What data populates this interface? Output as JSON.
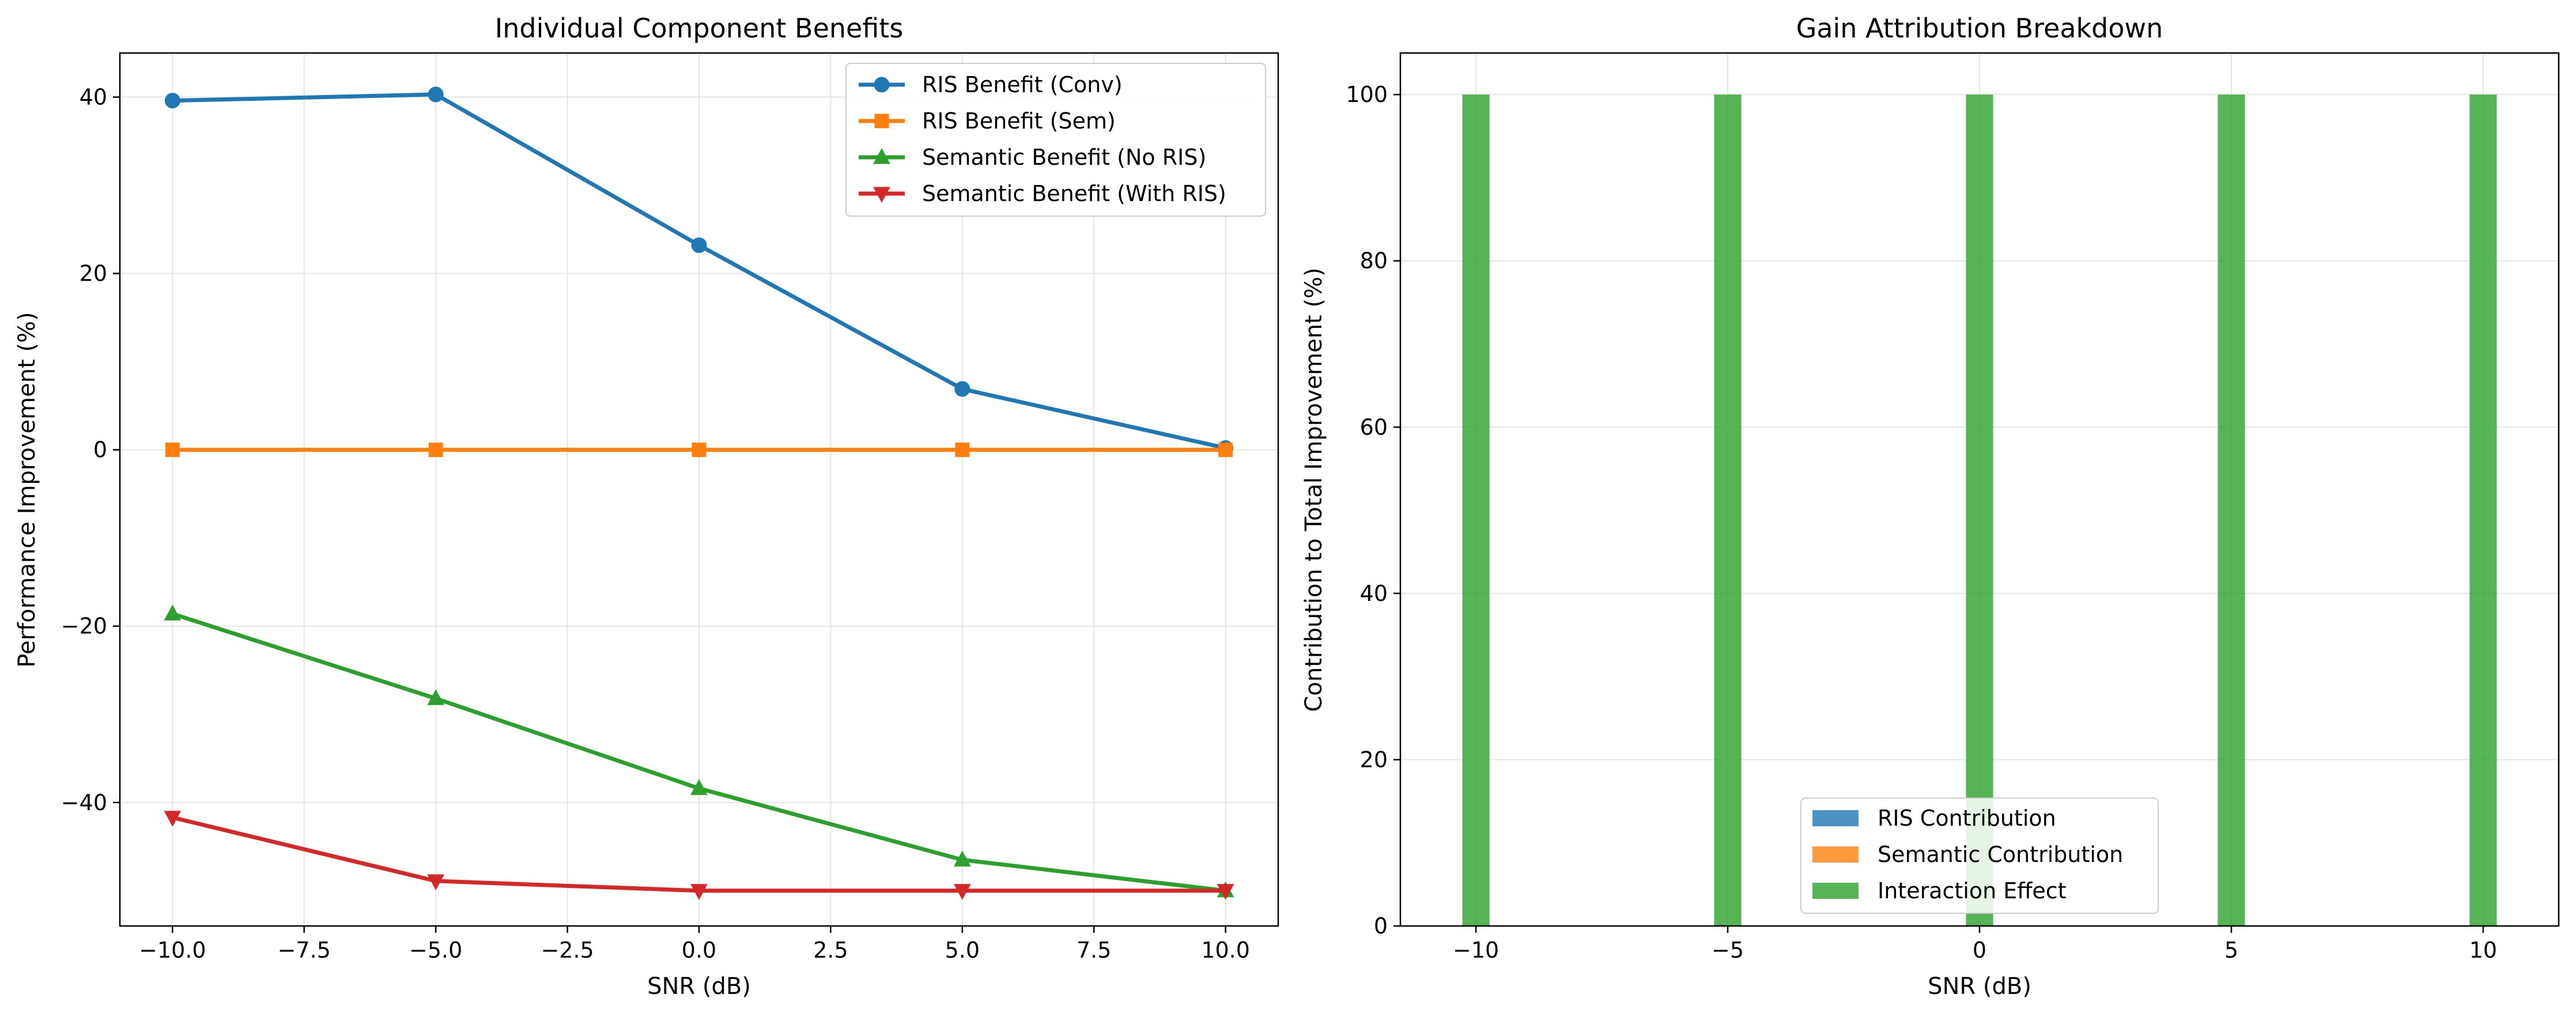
{
  "chart_data": [
    {
      "type": "line",
      "title": "Individual Component Benefits",
      "xlabel": "SNR (dB)",
      "ylabel": "Performance Improvement (%)",
      "x": [
        -10,
        -5,
        0,
        5,
        10
      ],
      "xlim": [
        -11,
        11
      ],
      "ylim": [
        -54,
        45
      ],
      "xticks": [
        -10.0,
        -7.5,
        -5.0,
        -2.5,
        0.0,
        2.5,
        5.0,
        7.5,
        10.0
      ],
      "xtick_labels": [
        "−10.0",
        "−7.5",
        "−5.0",
        "−2.5",
        "0.0",
        "2.5",
        "5.0",
        "7.5",
        "10.0"
      ],
      "yticks": [
        -40,
        -20,
        0,
        20,
        40
      ],
      "ytick_labels": [
        "−40",
        "−20",
        "0",
        "20",
        "40"
      ],
      "grid": true,
      "legend_position": "top-right",
      "series": [
        {
          "name": "RIS Benefit (Conv)",
          "color": "#1f77b4",
          "marker": "circle",
          "values": [
            39.6,
            40.3,
            23.2,
            6.9,
            0.2
          ]
        },
        {
          "name": "RIS Benefit (Sem)",
          "color": "#ff7f0e",
          "marker": "square",
          "values": [
            0,
            0,
            0,
            0,
            0
          ]
        },
        {
          "name": "Semantic Benefit (No RIS)",
          "color": "#2ca02c",
          "marker": "triangle-up",
          "values": [
            -18.6,
            -28.2,
            -38.4,
            -46.5,
            -50.0
          ]
        },
        {
          "name": "Semantic Benefit (With RIS)",
          "color": "#d62728",
          "marker": "triangle-down",
          "values": [
            -41.7,
            -48.9,
            -50.0,
            -50.0,
            -50.0
          ]
        }
      ]
    },
    {
      "type": "bar",
      "stacked": true,
      "title": "Gain Attribution Breakdown",
      "xlabel": "SNR (dB)",
      "ylabel": "Contribution to Total Improvement (%)",
      "x": [
        -10,
        -5,
        0,
        5,
        10
      ],
      "xlim": [
        -11.5,
        11.5
      ],
      "ylim": [
        0,
        105
      ],
      "xticks": [
        -10,
        -5,
        0,
        5,
        10
      ],
      "xtick_labels": [
        "−10",
        "−5",
        "0",
        "5",
        "10"
      ],
      "yticks": [
        0,
        20,
        40,
        60,
        80,
        100
      ],
      "ytick_labels": [
        "0",
        "20",
        "40",
        "60",
        "80",
        "100"
      ],
      "bar_width": 0.6,
      "grid": true,
      "legend_position": "lower-center",
      "series": [
        {
          "name": "RIS Contribution",
          "color": "#1f77b4",
          "values": [
            0,
            0,
            0,
            0,
            0
          ]
        },
        {
          "name": "Semantic Contribution",
          "color": "#ff7f0e",
          "values": [
            0,
            0,
            0,
            0,
            0
          ]
        },
        {
          "name": "Interaction Effect",
          "color": "#2ca02c",
          "values": [
            100,
            100,
            100,
            100,
            100
          ]
        }
      ]
    }
  ]
}
